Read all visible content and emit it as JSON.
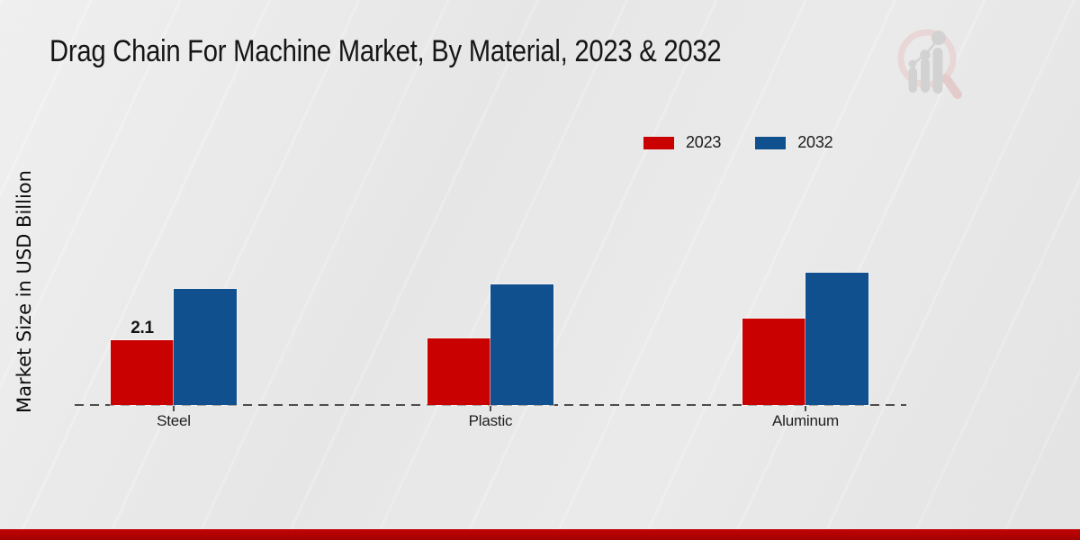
{
  "title": "Drag Chain For Machine Market, By Material, 2023 & 2032",
  "y_axis_label": "Market Size in USD Billion",
  "legend": {
    "items": [
      {
        "label": "2023",
        "color": "#c90101"
      },
      {
        "label": "2032",
        "color": "#10508f"
      }
    ]
  },
  "footer": {
    "band_color": "#b10202"
  },
  "logo": {
    "icon": "bar-chart-magnifier-watermark"
  },
  "chart_data": {
    "type": "bar",
    "title": "Drag Chain For Machine Market, By Material, 2023 & 2032",
    "xlabel": "",
    "ylabel": "Market Size in USD Billion",
    "categories": [
      "Steel",
      "Plastic",
      "Aluminum"
    ],
    "series": [
      {
        "name": "2023",
        "color": "#c90101",
        "values": [
          2.1,
          2.15,
          2.8
        ],
        "data_labels": [
          "2.1",
          null,
          null
        ]
      },
      {
        "name": "2032",
        "color": "#10508f",
        "values": [
          3.75,
          3.9,
          4.3
        ],
        "data_labels": [
          null,
          null,
          null
        ]
      }
    ],
    "ylim": [
      0,
      5
    ],
    "grid": false,
    "axis_style": "dashed-baseline-only",
    "legend_position": "top-right",
    "data_label_note": "only Steel 2023 bar shows a printed value (2.1); other values estimated from bar heights"
  }
}
